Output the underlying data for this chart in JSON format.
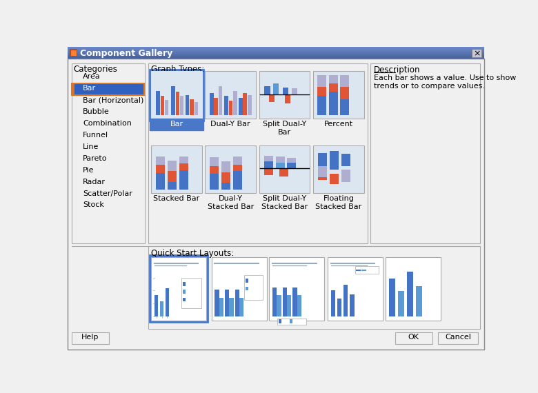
{
  "title": "Component Gallery",
  "bg_color": "#f0f0f0",
  "title_bar_top": "#7090c8",
  "title_bar_bot": "#4a6090",
  "categories": [
    "Area",
    "Bar",
    "Bar (Horizontal)",
    "Bubble",
    "Combination",
    "Funnel",
    "Line",
    "Pareto",
    "Pie",
    "Radar",
    "Scatter/Polar",
    "Stock"
  ],
  "selected_category_idx": 1,
  "graph_types_row1": [
    "Bar",
    "Dual-Y Bar",
    "Split Dual-Y\nBar",
    "Percent"
  ],
  "graph_types_row2": [
    "Stacked Bar",
    "Dual-Y\nStacked Bar",
    "Split Dual-Y\nStacked Bar",
    "Floating\nStacked Bar"
  ],
  "description_title": "Description",
  "description_text": "Each bar shows a value. Use to show\ntrends or to compare values.",
  "quick_start_label": "Quick Start Layouts:",
  "graph_types_label": "Graph Types:",
  "button_help": "Help",
  "button_ok": "OK",
  "button_cancel": "Cancel",
  "categories_label": "Categories",
  "C_BLUE1": "#4472c4",
  "C_BLUE2": "#5b9bd5",
  "C_RED": "#e05535",
  "C_LAV": "#b0aed0",
  "C_SEL_BG": "#4a78c8",
  "C_THUMB_BG": "#dce6f1",
  "C_BORDER": "#aaaaaa",
  "C_WHITE": "#ffffff",
  "C_PANEL": "#f0f0f0",
  "C_SEL_LIST": "#3060c0",
  "C_GRAY_BG": "#e8e8e8"
}
